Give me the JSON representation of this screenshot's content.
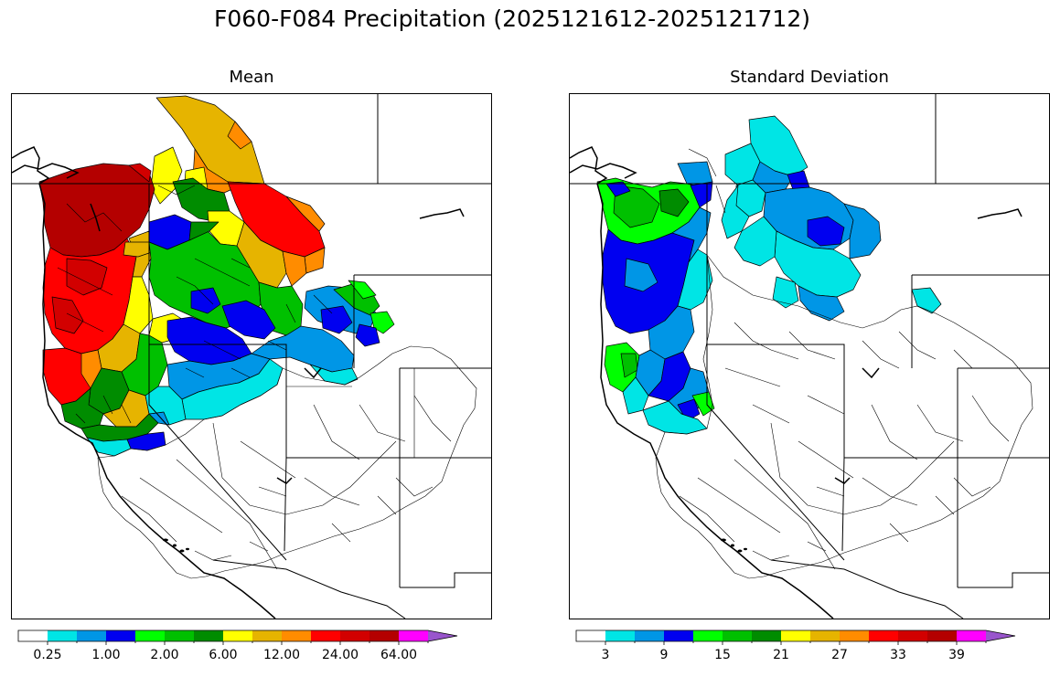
{
  "title": "F060-F084 Precipitation (2025121612-2025121712)",
  "panels": [
    {
      "id": "mean",
      "title": "Mean"
    },
    {
      "id": "std",
      "title": "Standard Deviation"
    }
  ],
  "colorbars": {
    "mean": {
      "colors": [
        "#ffffff",
        "#00e5e5",
        "#0096e6",
        "#0000f0",
        "#00ff00",
        "#00c000",
        "#008c00",
        "#ffff00",
        "#e6b400",
        "#ff8c00",
        "#ff0000",
        "#d20000",
        "#b40000",
        "#ff00ff",
        "#9955cc"
      ],
      "tick_labels": [
        "0.25",
        "1.00",
        "2.00",
        "6.00",
        "12.00",
        "24.00",
        "64.00"
      ]
    },
    "std": {
      "colors": [
        "#ffffff",
        "#00e5e5",
        "#0096e6",
        "#0000f0",
        "#00ff00",
        "#00c000",
        "#008c00",
        "#ffff00",
        "#e6b400",
        "#ff8c00",
        "#ff0000",
        "#d20000",
        "#b40000",
        "#ff00ff",
        "#9955cc"
      ],
      "tick_labels": [
        "3",
        "9",
        "15",
        "21",
        "27",
        "33",
        "39"
      ]
    }
  }
}
